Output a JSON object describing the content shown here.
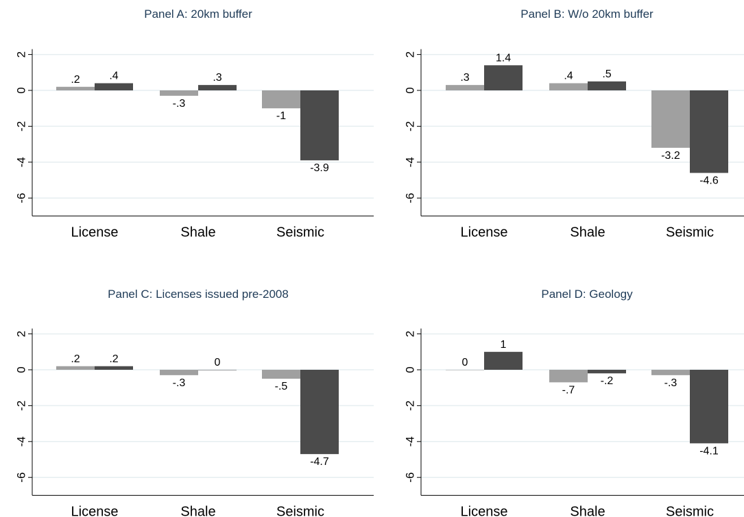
{
  "colors": {
    "series_a": "#a0a0a0",
    "series_b": "#4b4b4b",
    "grid": "#e6eef0",
    "axis": "#000000"
  },
  "chart_data": [
    {
      "type": "bar",
      "title": "Panel A: 20km buffer",
      "categories": [
        "License",
        "Shale",
        "Seismic"
      ],
      "series": [
        {
          "values": [
            0.2,
            -0.3,
            -1.0
          ],
          "labels": [
            ".2",
            "-.3",
            "-1"
          ]
        },
        {
          "values": [
            0.4,
            0.3,
            -3.9
          ],
          "labels": [
            ".4",
            ".3",
            "-3.9"
          ]
        }
      ],
      "ylim": [
        -7,
        2.3
      ],
      "yticks": [
        2,
        0,
        -2,
        -4,
        -6
      ],
      "ytick_labels": [
        "2",
        "0",
        "-2",
        "-4",
        "-6"
      ],
      "grid": true
    },
    {
      "type": "bar",
      "title": "Panel B: W/o 20km buffer",
      "categories": [
        "License",
        "Shale",
        "Seismic"
      ],
      "series": [
        {
          "values": [
            0.3,
            0.4,
            -3.2
          ],
          "labels": [
            ".3",
            ".4",
            "-3.2"
          ]
        },
        {
          "values": [
            1.4,
            0.5,
            -4.6
          ],
          "labels": [
            "1.4",
            ".5",
            "-4.6"
          ]
        }
      ],
      "ylim": [
        -7,
        2.3
      ],
      "yticks": [
        2,
        0,
        -2,
        -4,
        -6
      ],
      "ytick_labels": [
        "2",
        "0",
        "-2",
        "-4",
        "-6"
      ],
      "grid": true
    },
    {
      "type": "bar",
      "title": "Panel C: Licenses issued pre-2008",
      "categories": [
        "License",
        "Shale",
        "Seismic"
      ],
      "series": [
        {
          "values": [
            0.2,
            -0.3,
            -0.5
          ],
          "labels": [
            ".2",
            "-.3",
            "-.5"
          ]
        },
        {
          "values": [
            0.2,
            0.0,
            -4.7
          ],
          "labels": [
            ".2",
            "0",
            "-4.7"
          ]
        }
      ],
      "ylim": [
        -7,
        2.3
      ],
      "yticks": [
        2,
        0,
        -2,
        -4,
        -6
      ],
      "ytick_labels": [
        "2",
        "0",
        "-2",
        "-4",
        "-6"
      ],
      "grid": true
    },
    {
      "type": "bar",
      "title": "Panel D: Geology",
      "categories": [
        "License",
        "Shale",
        "Seismic"
      ],
      "series": [
        {
          "values": [
            0.0,
            -0.7,
            -0.3
          ],
          "labels": [
            "0",
            "-.7",
            "-.3"
          ]
        },
        {
          "values": [
            1.0,
            -0.2,
            -4.1
          ],
          "labels": [
            "1",
            "-.2",
            "-4.1"
          ]
        }
      ],
      "ylim": [
        -7,
        2.3
      ],
      "yticks": [
        2,
        0,
        -2,
        -4,
        -6
      ],
      "ytick_labels": [
        "2",
        "0",
        "-2",
        "-4",
        "-6"
      ],
      "grid": true
    }
  ]
}
